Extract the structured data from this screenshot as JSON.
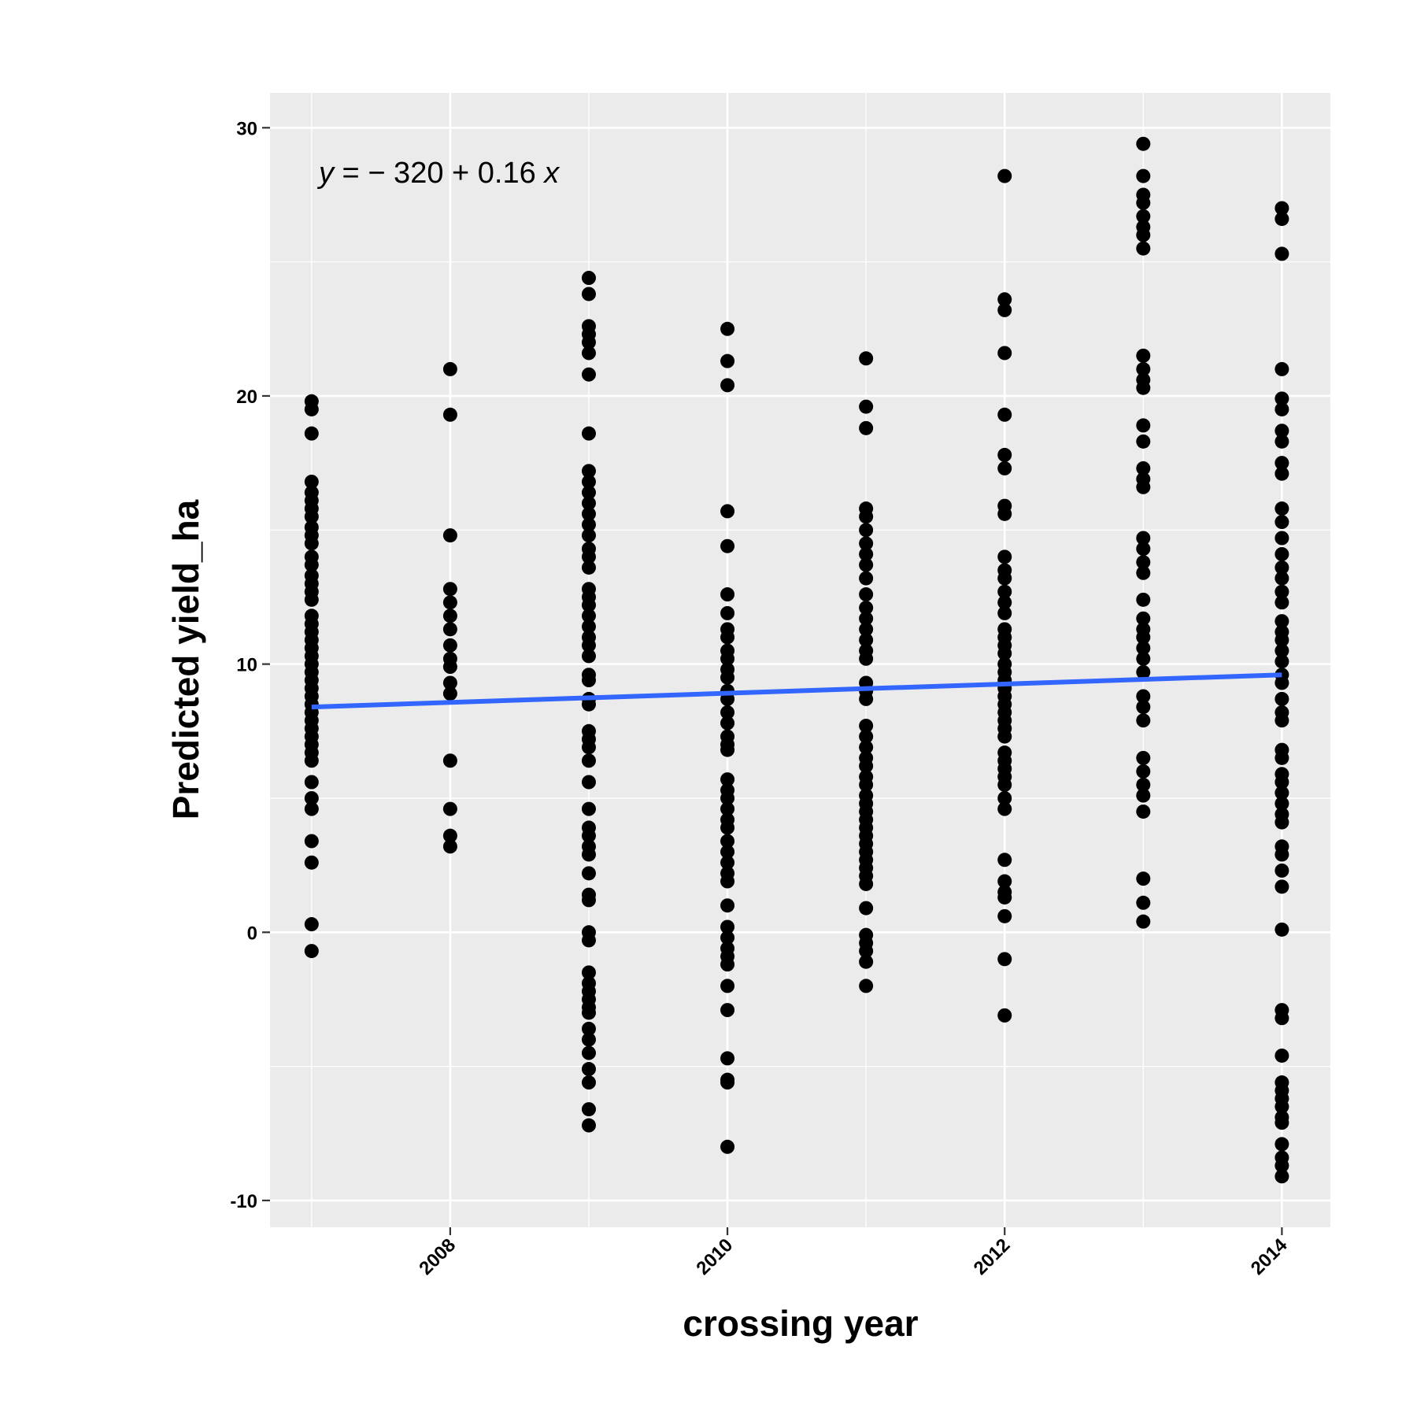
{
  "chart_data": {
    "type": "scatter",
    "title": "",
    "xlabel": "crossing year",
    "ylabel": "Predicted yield_ha",
    "xlim": [
      2006.7,
      2014.35
    ],
    "ylim": [
      -11,
      31.3
    ],
    "x_ticks": [
      2008,
      2010,
      2012,
      2014
    ],
    "x_tick_labels": [
      "2008",
      "2010",
      "2012",
      "2014"
    ],
    "y_ticks": [
      -10,
      0,
      10,
      20,
      30
    ],
    "y_tick_labels": [
      "-10",
      "0",
      "10",
      "20",
      "30"
    ],
    "grid": true,
    "annotation": {
      "y_var": "y",
      "equals": " = ",
      "rhs": "− 320 + 0.16 ",
      "x_var": "x"
    },
    "fit_line": {
      "x": [
        2007,
        2014
      ],
      "y": [
        8.4,
        9.6
      ],
      "color": "#3366FF"
    },
    "point_color": "#000000",
    "panel_color": "#EBEBEB",
    "series": [
      {
        "name": "2007",
        "x": 2007,
        "y": [
          19.8,
          19.5,
          18.6,
          16.8,
          16.4,
          16.1,
          15.8,
          15.5,
          15.1,
          14.8,
          14.5,
          14.0,
          13.7,
          13.3,
          13.0,
          12.7,
          12.4,
          11.8,
          11.5,
          11.2,
          10.9,
          10.6,
          10.3,
          10.0,
          9.7,
          9.4,
          9.1,
          8.8,
          8.5,
          8.2,
          7.9,
          7.6,
          7.3,
          7.0,
          6.7,
          6.4,
          5.6,
          5.0,
          4.6,
          3.4,
          2.6,
          0.3,
          -0.7
        ]
      },
      {
        "name": "2008",
        "x": 2008,
        "y": [
          21.0,
          19.3,
          14.8,
          12.8,
          12.3,
          11.8,
          11.3,
          10.7,
          10.2,
          9.9,
          9.3,
          8.9,
          6.4,
          4.6,
          3.6,
          3.2
        ]
      },
      {
        "name": "2009",
        "x": 2009,
        "y": [
          24.4,
          23.8,
          22.6,
          22.3,
          22.0,
          21.6,
          20.8,
          18.6,
          17.2,
          16.8,
          16.4,
          16.0,
          15.6,
          15.2,
          14.8,
          14.3,
          14.0,
          13.6,
          12.8,
          12.5,
          12.2,
          11.8,
          11.4,
          11.0,
          10.7,
          10.3,
          9.6,
          9.4,
          8.7,
          8.5,
          7.5,
          7.2,
          6.9,
          6.4,
          5.6,
          4.6,
          3.9,
          3.6,
          3.2,
          2.9,
          2.2,
          1.4,
          1.2,
          0.0,
          -0.3,
          -1.5,
          -1.9,
          -2.2,
          -2.5,
          -2.8,
          -3.0,
          -3.6,
          -4.0,
          -4.5,
          -5.1,
          -5.6,
          -6.6,
          -7.2
        ]
      },
      {
        "name": "2010",
        "x": 2010,
        "y": [
          22.5,
          21.3,
          20.4,
          15.7,
          14.4,
          12.6,
          11.9,
          11.3,
          11.0,
          10.5,
          10.2,
          9.8,
          9.5,
          9.0,
          8.7,
          8.2,
          7.8,
          7.3,
          7.0,
          6.8,
          5.7,
          5.3,
          5.0,
          4.6,
          4.2,
          3.9,
          3.4,
          3.0,
          2.6,
          2.2,
          1.9,
          1.0,
          0.2,
          -0.2,
          -0.6,
          -0.9,
          -1.2,
          -2.0,
          -2.9,
          -4.7,
          -5.5,
          -5.6,
          -8.0
        ]
      },
      {
        "name": "2011",
        "x": 2011,
        "y": [
          21.4,
          19.6,
          18.8,
          15.8,
          15.5,
          15.0,
          14.5,
          14.1,
          13.7,
          13.2,
          12.6,
          12.1,
          11.7,
          11.3,
          10.9,
          10.5,
          10.2,
          9.3,
          9.0,
          8.7,
          7.7,
          7.3,
          6.9,
          6.5,
          6.2,
          5.8,
          5.5,
          5.1,
          4.8,
          4.5,
          4.2,
          3.9,
          3.6,
          3.3,
          3.0,
          2.7,
          2.4,
          2.1,
          1.8,
          0.9,
          -0.1,
          -0.4,
          -0.7,
          -1.1,
          -2.0
        ]
      },
      {
        "name": "2012",
        "x": 2012,
        "y": [
          28.2,
          23.6,
          23.2,
          21.6,
          19.3,
          17.8,
          17.3,
          15.9,
          15.6,
          14.0,
          13.5,
          13.2,
          12.7,
          12.3,
          11.9,
          11.3,
          11.0,
          10.7,
          10.4,
          10.0,
          9.7,
          9.4,
          9.1,
          8.8,
          8.5,
          8.2,
          7.9,
          7.6,
          7.3,
          6.7,
          6.4,
          6.1,
          5.8,
          5.5,
          5.0,
          4.6,
          2.7,
          1.9,
          1.5,
          1.3,
          0.6,
          -1.0,
          -3.1
        ]
      },
      {
        "name": "2013",
        "x": 2013,
        "y": [
          29.4,
          28.2,
          27.5,
          27.2,
          26.7,
          26.3,
          26.0,
          25.5,
          21.5,
          21.0,
          20.6,
          20.3,
          18.9,
          18.3,
          17.3,
          16.9,
          16.6,
          14.7,
          14.3,
          13.8,
          13.4,
          12.4,
          11.7,
          11.3,
          11.0,
          10.6,
          10.2,
          9.7,
          8.8,
          8.4,
          7.9,
          6.5,
          6.0,
          5.5,
          5.1,
          4.5,
          2.0,
          1.1,
          0.4
        ]
      },
      {
        "name": "2014",
        "x": 2014,
        "y": [
          27.0,
          26.6,
          25.3,
          21.0,
          19.9,
          19.5,
          18.7,
          18.3,
          17.5,
          17.1,
          15.8,
          15.3,
          14.7,
          14.1,
          13.6,
          13.2,
          12.7,
          12.3,
          11.6,
          11.2,
          10.9,
          10.5,
          10.1,
          9.6,
          9.3,
          8.7,
          8.2,
          7.9,
          6.8,
          6.5,
          5.9,
          5.6,
          5.2,
          4.8,
          4.4,
          4.1,
          3.2,
          2.9,
          2.3,
          1.7,
          0.1,
          -2.9,
          -3.2,
          -4.6,
          -5.6,
          -5.9,
          -6.2,
          -6.5,
          -6.9,
          -7.1,
          -7.9,
          -8.4,
          -8.7,
          -9.1
        ]
      }
    ]
  }
}
